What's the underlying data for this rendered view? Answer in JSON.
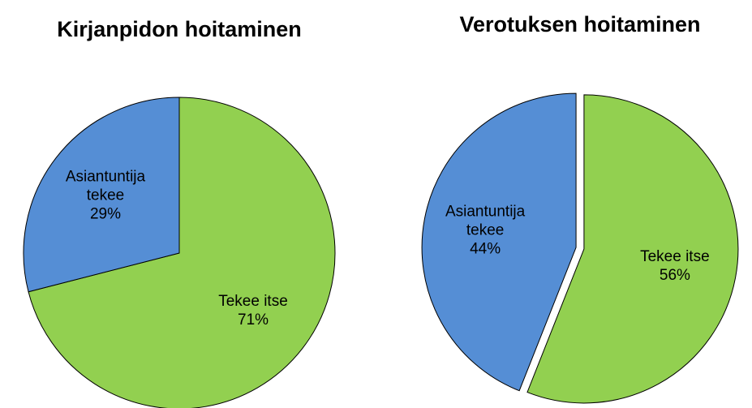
{
  "chart_data": [
    {
      "type": "pie",
      "title": "Kirjanpidon hoitaminen",
      "categories": [
        "Tekee itse",
        "Asiantuntija tekee"
      ],
      "values": [
        71,
        29
      ],
      "value_labels": [
        "71%",
        "29%"
      ],
      "colors": [
        "#92d050",
        "#558ed5"
      ],
      "explode": false
    },
    {
      "type": "pie",
      "title": "Verotuksen hoitaminen",
      "categories": [
        "Tekee itse",
        "Asiantuntija tekee"
      ],
      "values": [
        56,
        44
      ],
      "value_labels": [
        "56%",
        "44%"
      ],
      "colors": [
        "#92d050",
        "#558ed5"
      ],
      "explode": true
    }
  ]
}
